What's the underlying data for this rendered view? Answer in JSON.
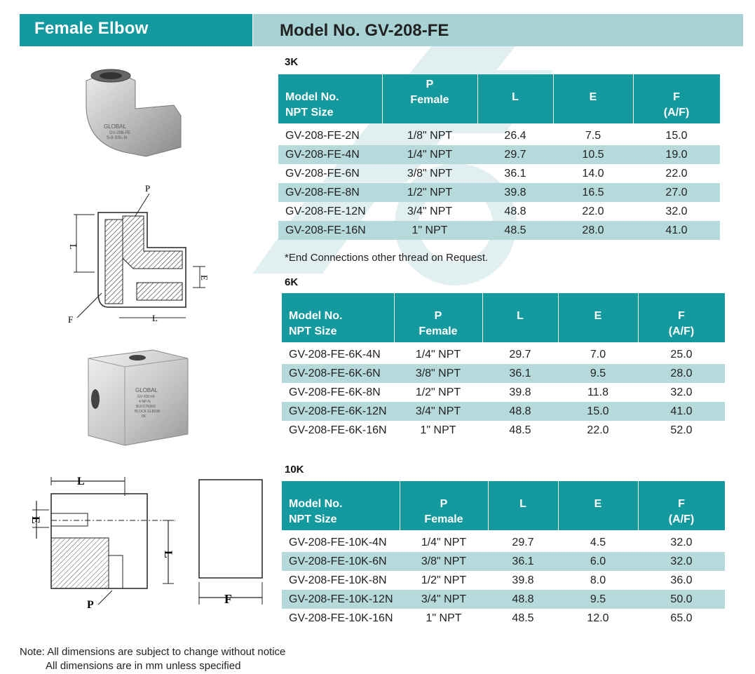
{
  "header": {
    "left_title": "Female Elbow",
    "right_title": "Model No. GV-208-FE"
  },
  "columns": {
    "model": [
      "Model No.",
      "NPT Size"
    ],
    "p": [
      "P",
      "Female"
    ],
    "l": "L",
    "e": "E",
    "f": [
      "F",
      "(A/F)"
    ]
  },
  "sections": [
    {
      "label": "3K",
      "rows": [
        [
          "GV-208-FE-2N",
          "1/8\" NPT",
          "26.4",
          "7.5",
          "15.0"
        ],
        [
          "GV-208-FE-4N",
          "1/4\" NPT",
          "29.7",
          "10.5",
          "19.0"
        ],
        [
          "GV-208-FE-6N",
          "3/8\" NPT",
          "36.1",
          "14.0",
          "22.0"
        ],
        [
          "GV-208-FE-8N",
          "1/2\" NPT",
          "39.8",
          "16.5",
          "27.0"
        ],
        [
          "GV-208-FE-12N",
          "3/4\" NPT",
          "48.8",
          "22.0",
          "32.0"
        ],
        [
          "GV-208-FE-16N",
          "1\" NPT",
          "48.5",
          "28.0",
          "41.0"
        ]
      ]
    },
    {
      "label": "6K",
      "rows": [
        [
          "GV-208-FE-6K-4N",
          "1/4\" NPT",
          "29.7",
          "7.0",
          "25.0"
        ],
        [
          "GV-208-FE-6K-6N",
          "3/8\" NPT",
          "36.1",
          "9.5",
          "28.0"
        ],
        [
          "GV-208-FE-6K-8N",
          "1/2\" NPT",
          "39.8",
          "11.8",
          "32.0"
        ],
        [
          "GV-208-FE-6K-12N",
          "3/4\" NPT",
          "48.8",
          "15.0",
          "41.0"
        ],
        [
          "GV-208-FE-6K-16N",
          "1\" NPT",
          "48.5",
          "22.0",
          "52.0"
        ]
      ]
    },
    {
      "label": "10K",
      "rows": [
        [
          "GV-208-FE-10K-4N",
          "1/4\" NPT",
          "29.7",
          "4.5",
          "32.0"
        ],
        [
          "GV-208-FE-10K-6N",
          "3/8\" NPT",
          "36.1",
          "6.0",
          "32.0"
        ],
        [
          "GV-208-FE-10K-8N",
          "1/2\" NPT",
          "39.8",
          "8.0",
          "36.0"
        ],
        [
          "GV-208-FE-10K-12N",
          "3/4\" NPT",
          "48.8",
          "9.5",
          "50.0"
        ],
        [
          "GV-208-FE-10K-16N",
          "1\" NPT",
          "48.5",
          "12.0",
          "65.0"
        ]
      ]
    }
  ],
  "end_note": "*End Connections other thread on Request.",
  "footnote": [
    "Note: All dimensions are subject to change without notice",
    "All dimensions are in mm unless specified"
  ],
  "figures": {
    "elbow_photo_markings": [
      "GLOBAL",
      "GV-208-FE",
      "S-8-SSL-N"
    ],
    "block_photo_markings": [
      "GLOBAL",
      "GV-208-FE",
      "4-NP-N",
      "BLKSTN303",
      "BLOCK ELBOW",
      "6K"
    ],
    "drawing_labels": {
      "p": "P",
      "l": "L",
      "e": "E",
      "f": "F"
    }
  },
  "colors": {
    "teal": "#14999f",
    "light_teal": "#a9d2d5",
    "row_stripe": "#b6d9dc"
  }
}
